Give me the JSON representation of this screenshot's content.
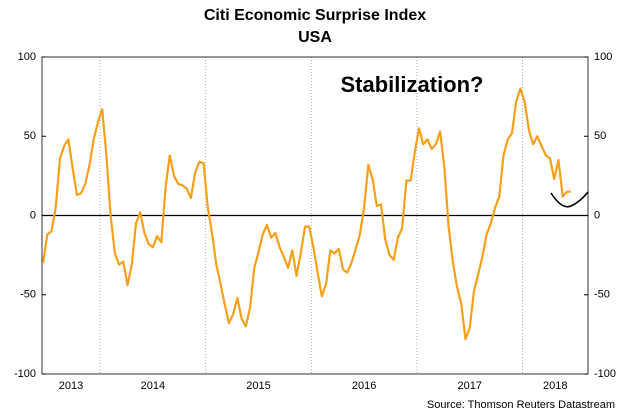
{
  "chart_data": {
    "type": "line",
    "title": "Citi Economic Surprise Index",
    "subtitle": "USA",
    "annotation": "Stabilization?",
    "source": "Source: Thomson Reuters Datastream",
    "x": [
      2013.46,
      2013.5,
      2013.54,
      2013.58,
      2013.62,
      2013.66,
      2013.7,
      2013.74,
      2013.78,
      2013.82,
      2013.86,
      2013.9,
      2013.94,
      2013.98,
      2014.02,
      2014.06,
      2014.1,
      2014.14,
      2014.18,
      2014.22,
      2014.26,
      2014.3,
      2014.34,
      2014.38,
      2014.42,
      2014.46,
      2014.5,
      2014.54,
      2014.58,
      2014.62,
      2014.66,
      2014.7,
      2014.74,
      2014.78,
      2014.82,
      2014.86,
      2014.9,
      2014.94,
      2014.98,
      2015.02,
      2015.06,
      2015.1,
      2015.14,
      2015.18,
      2015.22,
      2015.26,
      2015.3,
      2015.34,
      2015.38,
      2015.42,
      2015.46,
      2015.5,
      2015.54,
      2015.58,
      2015.62,
      2015.66,
      2015.7,
      2015.74,
      2015.78,
      2015.82,
      2015.86,
      2015.9,
      2015.94,
      2015.98,
      2016.02,
      2016.06,
      2016.1,
      2016.14,
      2016.18,
      2016.22,
      2016.26,
      2016.3,
      2016.34,
      2016.38,
      2016.42,
      2016.46,
      2016.5,
      2016.54,
      2016.58,
      2016.62,
      2016.66,
      2016.7,
      2016.74,
      2016.78,
      2016.82,
      2016.86,
      2016.9,
      2016.94,
      2016.98,
      2017.02,
      2017.06,
      2017.1,
      2017.14,
      2017.18,
      2017.22,
      2017.26,
      2017.3,
      2017.34,
      2017.38,
      2017.42,
      2017.46,
      2017.5,
      2017.54,
      2017.58,
      2017.62,
      2017.66,
      2017.7,
      2017.74,
      2017.78,
      2017.82,
      2017.86,
      2017.9,
      2017.94,
      2017.98,
      2018.02,
      2018.06,
      2018.1,
      2018.14,
      2018.18,
      2018.22,
      2018.26,
      2018.3,
      2018.34,
      2018.38,
      2018.42,
      2018.46
    ],
    "series": [
      {
        "color": "#f5a01a",
        "values": [
          -30,
          -12,
          -10,
          5,
          36,
          44,
          48,
          30,
          13,
          14,
          20,
          32,
          48,
          59,
          67,
          38,
          0,
          -24,
          -31,
          -29,
          -44,
          -31,
          -5,
          2,
          -11,
          -18,
          -20,
          -13,
          -17,
          18,
          38,
          25,
          20,
          19,
          17,
          11,
          27,
          34,
          33,
          5,
          -11,
          -31,
          -43,
          -56,
          -68,
          -62,
          -52,
          -65,
          -70,
          -58,
          -33,
          -23,
          -12,
          -6,
          -14,
          -11,
          -20,
          -26,
          -33,
          -22,
          -38,
          -24,
          -7,
          -7,
          -20,
          -36,
          -51,
          -43,
          -22,
          -24,
          -21,
          -34,
          -36,
          -30,
          -21,
          -12,
          5,
          32,
          23,
          6,
          7,
          -15,
          -25,
          -28,
          -14,
          -8,
          22,
          22,
          40,
          55,
          45,
          48,
          42,
          45,
          53,
          30,
          -7,
          -29,
          -45,
          -56,
          -78,
          -71,
          -48,
          -37,
          -26,
          -12,
          -5,
          5,
          12,
          38,
          48,
          52,
          72,
          80,
          72,
          54,
          45,
          50,
          44,
          38,
          36,
          23,
          35,
          12,
          15,
          15
        ]
      }
    ],
    "xlim": [
      2013.45,
      2018.62
    ],
    "xticks": [
      {
        "value": 2013,
        "label": "2013"
      },
      {
        "value": 2014,
        "label": "2014"
      },
      {
        "value": 2015,
        "label": "2015"
      },
      {
        "value": 2016,
        "label": "2016"
      },
      {
        "value": 2017,
        "label": "2017"
      },
      {
        "value": 2018,
        "label": "2018"
      }
    ],
    "ylim": [
      -100,
      100
    ],
    "yticks": [
      -100,
      -50,
      0,
      50,
      100
    ],
    "y2lim": [
      -100,
      100
    ],
    "y2ticks": [
      -100,
      -50,
      0,
      50,
      100
    ],
    "zero_line": true,
    "year_grid": true
  }
}
